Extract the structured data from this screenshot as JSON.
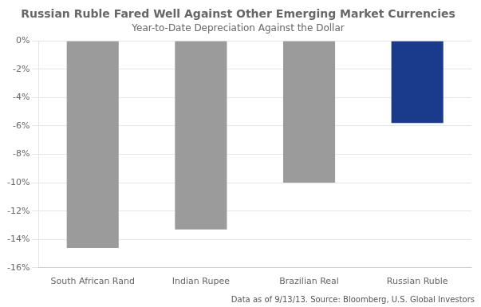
{
  "chart_data": {
    "type": "bar",
    "title": "Russian Ruble Fared Well Against Other Emerging Market Currencies",
    "subtitle": "Year-to-Date Depreciation Against the Dollar",
    "categories": [
      "South African Rand",
      "Indian Rupee",
      "Brazilian Real",
      "Russian Ruble"
    ],
    "values": [
      -14.6,
      -13.3,
      -10.0,
      -5.8
    ],
    "colors": [
      "#9b9b9b",
      "#9b9b9b",
      "#9b9b9b",
      "#1a3a8c"
    ],
    "ylim": [
      -16,
      0
    ],
    "yticks": [
      {
        "value": 0,
        "label": "0%"
      },
      {
        "value": -2,
        "label": "-2%"
      },
      {
        "value": -4,
        "label": "-4%"
      },
      {
        "value": -6,
        "label": "-6%"
      },
      {
        "value": -8,
        "label": "-8%"
      },
      {
        "value": -10,
        "label": "-10%"
      },
      {
        "value": -12,
        "label": "-12%"
      },
      {
        "value": -14,
        "label": "-14%"
      },
      {
        "value": -16,
        "label": "-16%"
      }
    ],
    "grid": true,
    "annotations": [
      "Data as of 9/13/13. Source: Bloomberg, U.S. Global Investors"
    ]
  }
}
